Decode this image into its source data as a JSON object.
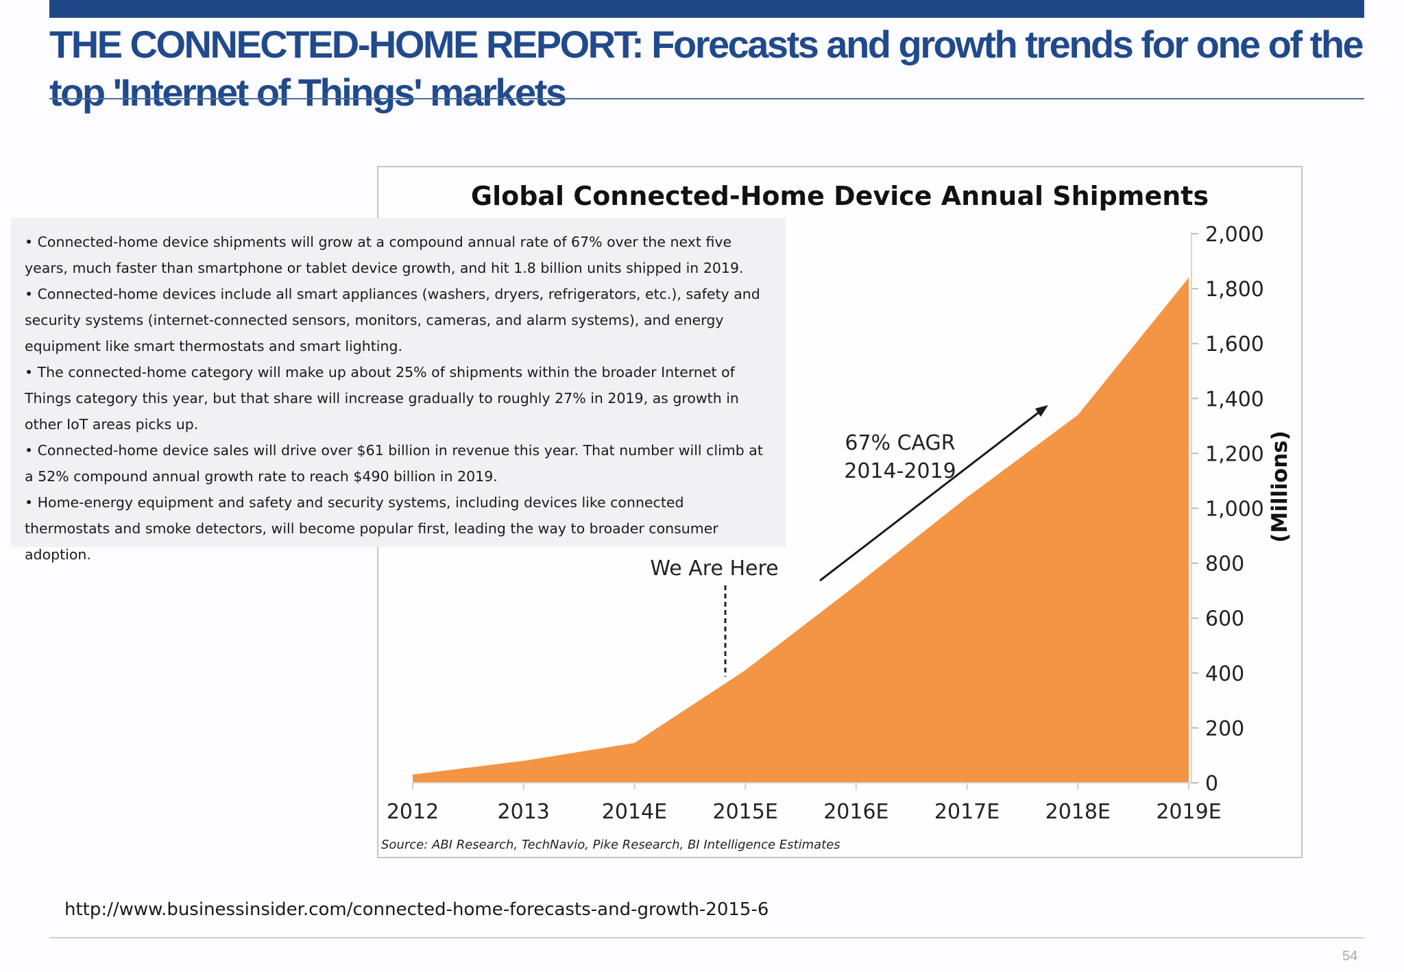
{
  "slide": {
    "title": "THE CONNECTED-HOME REPORT: Forecasts and growth trends for one of the top 'Internet of Things' markets",
    "source_url": "http://www.businessinsider.com/connected-home-forecasts-and-growth-2015-6",
    "page_number": "54"
  },
  "summary": {
    "bullets": [
      "Connected-home device shipments will grow at a compound annual rate of 67% over the next five years, much faster than smartphone or tablet device growth, and hit 1.8 billion units shipped in 2019.",
      "Connected-home devices include all smart appliances (washers, dryers, refrigerators, etc.), safety and security systems (internet-connected sensors, monitors, cameras, and alarm systems), and energy equipment like smart thermostats and smart lighting.",
      "The connected-home category will make up about 25% of shipments within the broader Internet of Things category this year, but that share will increase gradually to roughly 27% in 2019, as growth in other IoT areas picks up.",
      "Connected-home device sales will drive over $61 billion in revenue this year. That number will climb at a 52% compound annual growth rate to reach $490 billion in 2019.",
      "Home-energy equipment and safety and security systems, including devices like connected thermostats and smoke detectors, will become popular first, leading the way to broader consumer adoption."
    ]
  },
  "chart_data": {
    "type": "area",
    "title": "Global Connected-Home Device Annual Shipments",
    "ylabel": "(Millions)",
    "categories": [
      "2012",
      "2013",
      "2014E",
      "2015E",
      "2016E",
      "2017E",
      "2018E",
      "2019E"
    ],
    "values": [
      30,
      80,
      145,
      410,
      720,
      1040,
      1340,
      1840
    ],
    "ylim": [
      0,
      2000
    ],
    "yticks": [
      "0",
      "200",
      "400",
      "600",
      "800",
      "1,000",
      "1,200",
      "1,400",
      "1,600",
      "1,800",
      "2,000"
    ],
    "y_axis_position": "right",
    "grid": false,
    "legend": "none",
    "fill_color": "#f39544",
    "annotations": {
      "cagr_line1": "67% CAGR",
      "cagr_line2": "2014-2019",
      "marker_label": "We Are Here"
    },
    "source": "Source: ABI Research, TechNavio, Pike Research, BI Intelligence Estimates"
  }
}
